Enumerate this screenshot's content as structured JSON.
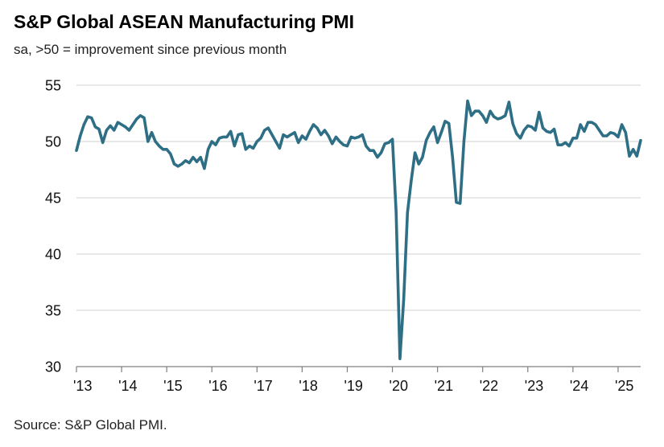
{
  "header": {
    "title": "S&P Global ASEAN Manufacturing PMI",
    "subtitle": "sa, >50 = improvement since previous month"
  },
  "footer": {
    "source": "Source: S&P Global PMI."
  },
  "chart_data": {
    "type": "line",
    "title": "S&P Global ASEAN Manufacturing PMI",
    "subtitle": "sa, >50 = improvement since previous month",
    "xlabel": "",
    "ylabel": "",
    "ylim": [
      30,
      55
    ],
    "yticks": [
      30,
      35,
      40,
      45,
      50,
      55
    ],
    "xticks": [
      "'13",
      "'14",
      "'15",
      "'16",
      "'17",
      "'18",
      "'19",
      "'20",
      "'21",
      "'22",
      "'23",
      "'24",
      "'25"
    ],
    "xlim": [
      "2013-01",
      "2025-07"
    ],
    "grid": true,
    "legend": "none",
    "line_color": "#2e6f86",
    "series": [
      {
        "name": "",
        "x": [
          "2013-01",
          "2013-02",
          "2013-03",
          "2013-04",
          "2013-05",
          "2013-06",
          "2013-07",
          "2013-08",
          "2013-09",
          "2013-10",
          "2013-11",
          "2013-12",
          "2014-01",
          "2014-02",
          "2014-03",
          "2014-04",
          "2014-05",
          "2014-06",
          "2014-07",
          "2014-08",
          "2014-09",
          "2014-10",
          "2014-11",
          "2014-12",
          "2015-01",
          "2015-02",
          "2015-03",
          "2015-04",
          "2015-05",
          "2015-06",
          "2015-07",
          "2015-08",
          "2015-09",
          "2015-10",
          "2015-11",
          "2015-12",
          "2016-01",
          "2016-02",
          "2016-03",
          "2016-04",
          "2016-05",
          "2016-06",
          "2016-07",
          "2016-08",
          "2016-09",
          "2016-10",
          "2016-11",
          "2016-12",
          "2017-01",
          "2017-02",
          "2017-03",
          "2017-04",
          "2017-05",
          "2017-06",
          "2017-07",
          "2017-08",
          "2017-09",
          "2017-10",
          "2017-11",
          "2017-12",
          "2018-01",
          "2018-02",
          "2018-03",
          "2018-04",
          "2018-05",
          "2018-06",
          "2018-07",
          "2018-08",
          "2018-09",
          "2018-10",
          "2018-11",
          "2018-12",
          "2019-01",
          "2019-02",
          "2019-03",
          "2019-04",
          "2019-05",
          "2019-06",
          "2019-07",
          "2019-08",
          "2019-09",
          "2019-10",
          "2019-11",
          "2019-12",
          "2020-01",
          "2020-02",
          "2020-03",
          "2020-04",
          "2020-05",
          "2020-06",
          "2020-07",
          "2020-08",
          "2020-09",
          "2020-10",
          "2020-11",
          "2020-12",
          "2021-01",
          "2021-02",
          "2021-03",
          "2021-04",
          "2021-05",
          "2021-06",
          "2021-07",
          "2021-08",
          "2021-09",
          "2021-10",
          "2021-11",
          "2021-12",
          "2022-01",
          "2022-02",
          "2022-03",
          "2022-04",
          "2022-05",
          "2022-06",
          "2022-07",
          "2022-08",
          "2022-09",
          "2022-10",
          "2022-11",
          "2022-12",
          "2023-01",
          "2023-02",
          "2023-03",
          "2023-04",
          "2023-05",
          "2023-06",
          "2023-07",
          "2023-08",
          "2023-09",
          "2023-10",
          "2023-11",
          "2023-12",
          "2024-01",
          "2024-02",
          "2024-03",
          "2024-04",
          "2024-05",
          "2024-06",
          "2024-07",
          "2024-08",
          "2024-09",
          "2024-10",
          "2024-11",
          "2024-12",
          "2025-01",
          "2025-02",
          "2025-03",
          "2025-04",
          "2025-05",
          "2025-06",
          "2025-07"
        ],
        "values": [
          49.2,
          50.5,
          51.5,
          52.2,
          52.1,
          51.3,
          51.1,
          49.9,
          51.0,
          51.4,
          51.0,
          51.7,
          51.5,
          51.3,
          51.0,
          51.5,
          52.0,
          52.3,
          52.1,
          50.0,
          50.8,
          50.0,
          49.6,
          49.3,
          49.3,
          48.9,
          48.0,
          47.8,
          48.0,
          48.3,
          48.1,
          48.6,
          48.2,
          48.6,
          47.6,
          49.3,
          50.0,
          49.7,
          50.3,
          50.4,
          50.4,
          50.9,
          49.6,
          50.6,
          50.7,
          49.3,
          49.6,
          49.4,
          50.0,
          50.3,
          51.0,
          51.2,
          50.6,
          50.0,
          49.4,
          50.6,
          50.4,
          50.6,
          50.8,
          49.9,
          50.5,
          50.2,
          50.9,
          51.5,
          51.2,
          50.6,
          51.0,
          50.5,
          49.8,
          50.4,
          50.0,
          49.7,
          49.6,
          50.4,
          50.3,
          50.4,
          50.6,
          49.6,
          49.2,
          49.2,
          48.6,
          49.0,
          49.8,
          49.9,
          50.2,
          43.7,
          30.7,
          36.0,
          43.7,
          46.5,
          49.0,
          48.0,
          48.6,
          50.1,
          50.8,
          51.3,
          49.9,
          50.8,
          51.8,
          51.6,
          48.6,
          44.6,
          44.5,
          50.0,
          53.6,
          52.3,
          52.7,
          52.7,
          52.3,
          51.7,
          52.7,
          52.2,
          52.0,
          52.1,
          52.3,
          53.5,
          51.6,
          50.7,
          50.3,
          51.0,
          51.4,
          51.3,
          51.0,
          52.6,
          51.2,
          50.9,
          50.8,
          51.1,
          49.7,
          49.7,
          49.9,
          49.6,
          50.3,
          50.3,
          51.5,
          50.9,
          51.7,
          51.7,
          51.5,
          51.0,
          50.5,
          50.5,
          50.8,
          50.7,
          50.4,
          51.5,
          50.8,
          48.7,
          49.3,
          48.7,
          50.1
        ]
      }
    ]
  }
}
